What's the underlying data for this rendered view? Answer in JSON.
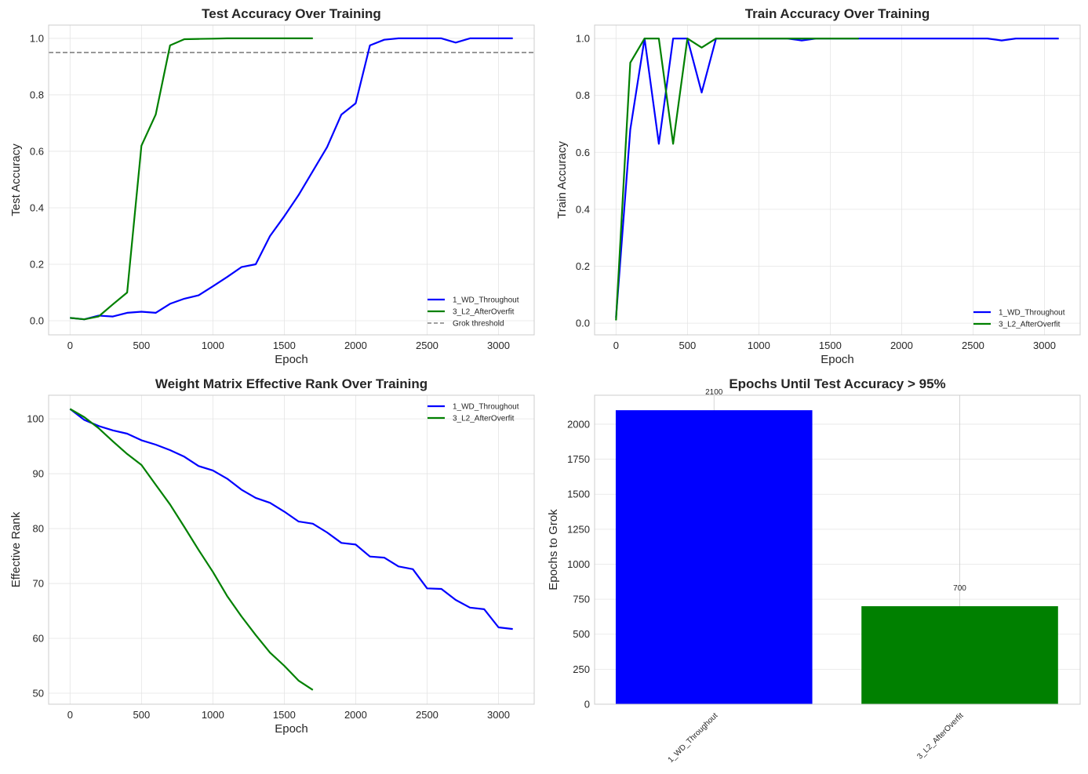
{
  "colors": {
    "1_WD_Throughout": "#0000ff",
    "3_L2_AfterOverfit": "#008000",
    "threshold": "#808080",
    "grid": "#e5e5e5"
  },
  "chart_data": [
    {
      "type": "line",
      "title": "Test Accuracy Over Training",
      "xlabel": "Epoch",
      "ylabel": "Test Accuracy",
      "xlim": [
        -150,
        3250
      ],
      "ylim": [
        -0.05,
        1.047
      ],
      "xticks": [
        0,
        500,
        1000,
        1500,
        2000,
        2500,
        3000
      ],
      "yticks": [
        0.0,
        0.2,
        0.4,
        0.6,
        0.8,
        1.0
      ],
      "grid": true,
      "legend": "bottom-right",
      "hline": {
        "name": "Grok threshold",
        "y": 0.95,
        "style": "dashed"
      },
      "series": [
        {
          "name": "1_WD_Throughout",
          "x": [
            0,
            100,
            200,
            300,
            400,
            500,
            600,
            700,
            800,
            900,
            1000,
            1100,
            1200,
            1300,
            1400,
            1500,
            1600,
            1700,
            1800,
            1900,
            2000,
            2100,
            2200,
            2300,
            2400,
            2500,
            2600,
            2700,
            2800,
            2900,
            3000,
            3100
          ],
          "y": [
            0.01,
            0.005,
            0.018,
            0.015,
            0.028,
            0.032,
            0.028,
            0.06,
            0.078,
            0.09,
            0.122,
            0.155,
            0.19,
            0.2,
            0.3,
            0.37,
            0.445,
            0.53,
            0.615,
            0.73,
            0.77,
            0.975,
            0.995,
            1.0,
            1.0,
            1.0,
            1.0,
            0.985,
            1.0,
            1.0,
            1.0,
            1.0
          ]
        },
        {
          "name": "3_L2_AfterOverfit",
          "x": [
            0,
            100,
            200,
            300,
            400,
            500,
            600,
            700,
            800,
            900,
            1000,
            1100,
            1200,
            1300,
            1400,
            1500,
            1600,
            1700
          ],
          "y": [
            0.01,
            0.005,
            0.015,
            0.058,
            0.1,
            0.62,
            0.73,
            0.975,
            0.997,
            0.998,
            0.999,
            1.0,
            1.0,
            1.0,
            1.0,
            1.0,
            1.0,
            1.0
          ]
        }
      ]
    },
    {
      "type": "line",
      "title": "Train Accuracy Over Training",
      "xlabel": "Epoch",
      "ylabel": "Train Accuracy",
      "xlim": [
        -150,
        3250
      ],
      "ylim": [
        -0.041,
        1.047
      ],
      "xticks": [
        0,
        500,
        1000,
        1500,
        2000,
        2500,
        3000
      ],
      "yticks": [
        0.0,
        0.2,
        0.4,
        0.6,
        0.8,
        1.0
      ],
      "grid": true,
      "legend": "bottom-right",
      "series": [
        {
          "name": "1_WD_Throughout",
          "x": [
            0,
            100,
            200,
            300,
            400,
            500,
            600,
            700,
            800,
            900,
            1000,
            1100,
            1200,
            1300,
            1400,
            1500,
            1600,
            1700,
            1800,
            1900,
            2000,
            2100,
            2200,
            2300,
            2400,
            2500,
            2600,
            2700,
            2800,
            2900,
            3000,
            3100
          ],
          "y": [
            0.02,
            0.68,
            1.0,
            0.63,
            1.0,
            1.0,
            0.81,
            1.0,
            1.0,
            1.0,
            1.0,
            1.0,
            1.0,
            0.993,
            1.0,
            1.0,
            1.0,
            1.0,
            1.0,
            1.0,
            1.0,
            1.0,
            1.0,
            1.0,
            1.0,
            1.0,
            1.0,
            0.993,
            1.0,
            1.0,
            1.0,
            1.0
          ]
        },
        {
          "name": "3_L2_AfterOverfit",
          "x": [
            0,
            100,
            200,
            300,
            400,
            500,
            600,
            700,
            800,
            900,
            1000,
            1100,
            1200,
            1300,
            1400,
            1500,
            1600,
            1700
          ],
          "y": [
            0.01,
            0.915,
            1.0,
            1.0,
            0.63,
            1.0,
            0.968,
            1.0,
            1.0,
            1.0,
            1.0,
            1.0,
            1.0,
            1.0,
            1.0,
            1.0,
            1.0,
            1.0
          ]
        }
      ]
    },
    {
      "type": "line",
      "title": "Weight Matrix Effective Rank Over Training",
      "xlabel": "Epoch",
      "ylabel": "Effective Rank",
      "xlim": [
        -150,
        3250
      ],
      "ylim": [
        48,
        104.3
      ],
      "xticks": [
        0,
        500,
        1000,
        1500,
        2000,
        2500,
        3000
      ],
      "yticks": [
        50,
        60,
        70,
        80,
        90,
        100
      ],
      "grid": true,
      "legend": "top-right",
      "series": [
        {
          "name": "1_WD_Throughout",
          "x": [
            0,
            100,
            200,
            300,
            400,
            500,
            600,
            700,
            800,
            900,
            1000,
            1100,
            1200,
            1300,
            1400,
            1500,
            1600,
            1700,
            1800,
            1900,
            2000,
            2100,
            2200,
            2300,
            2400,
            2500,
            2600,
            2700,
            2800,
            2900,
            3000,
            3100
          ],
          "y": [
            101.8,
            99.8,
            98.7,
            97.9,
            97.3,
            96.1,
            95.3,
            94.3,
            93.1,
            91.4,
            90.6,
            89.1,
            87.1,
            85.6,
            84.7,
            83.1,
            81.3,
            80.9,
            79.3,
            77.4,
            77.1,
            74.9,
            74.7,
            73.1,
            72.6,
            69.1,
            69.0,
            67.0,
            65.6,
            65.3,
            62.0,
            61.7
          ]
        },
        {
          "name": "3_L2_AfterOverfit",
          "x": [
            0,
            100,
            200,
            300,
            400,
            500,
            600,
            700,
            800,
            900,
            1000,
            1100,
            1200,
            1300,
            1400,
            1500,
            1600,
            1700
          ],
          "y": [
            101.8,
            100.3,
            98.3,
            95.9,
            93.6,
            91.6,
            88.0,
            84.4,
            80.3,
            76.1,
            72.1,
            67.7,
            64.0,
            60.6,
            57.4,
            55.0,
            52.3,
            50.6
          ]
        }
      ]
    },
    {
      "type": "bar",
      "title": "Epochs Until Test Accuracy > 95%",
      "xlabel": "",
      "ylabel": "Epochs to Grok",
      "categories": [
        "1_WD_Throughout",
        "3_L2_AfterOverfit"
      ],
      "values": [
        2100,
        700
      ],
      "data_labels": [
        "2100",
        "700"
      ],
      "ylim": [
        0,
        2207
      ],
      "yticks": [
        0,
        250,
        500,
        750,
        1000,
        1250,
        1500,
        1750,
        2000
      ],
      "grid": true
    }
  ]
}
